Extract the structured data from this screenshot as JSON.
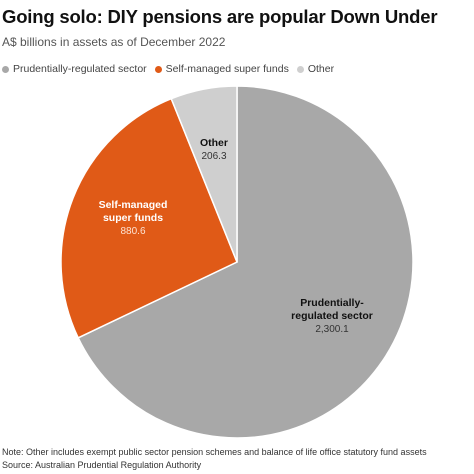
{
  "header": {
    "title": "Going solo: DIY pensions are popular Down Under",
    "subtitle": "A$ billions in assets as of December 2022"
  },
  "legend": [
    {
      "label": "Prudentially-regulated sector",
      "color": "#a8a8a8"
    },
    {
      "label": "Self-managed super funds",
      "color": "#e05a17"
    },
    {
      "label": "Other",
      "color": "#cfcfcf"
    }
  ],
  "chart_data": {
    "type": "pie",
    "title": "Going solo: DIY pensions are popular Down Under",
    "subtitle": "A$ billions in assets as of December 2022",
    "legend_position": "top-left",
    "slices": [
      {
        "name": "Prudentially-regulated sector",
        "label_lines": [
          "Prudentially-",
          "regulated sector"
        ],
        "value": 2300.1,
        "value_label": "2,300.1",
        "color": "#a8a8a8"
      },
      {
        "name": "Self-managed super funds",
        "label_lines": [
          "Self-managed",
          "super funds"
        ],
        "value": 880.6,
        "value_label": "880.6",
        "color": "#e05a17"
      },
      {
        "name": "Other",
        "label_lines": [
          "Other"
        ],
        "value": 206.3,
        "value_label": "206.3",
        "color": "#cfcfcf"
      }
    ]
  },
  "footer": {
    "note": "Note: Other includes exempt public sector pension schemes and balance of life office statutory fund assets",
    "source": "Source: Australian Prudential Regulation Authority"
  }
}
